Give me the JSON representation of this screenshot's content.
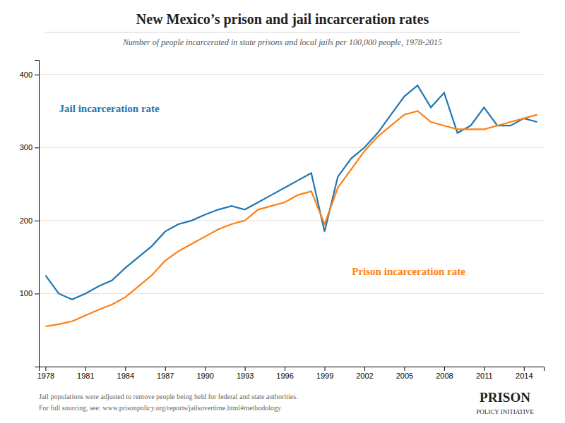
{
  "chart_data": {
    "type": "line",
    "title": "New Mexico’s prison and jail incarceration rates",
    "subtitle": "Number of people incarcerated in state prisons and local jails per 100,000 people, 1978-2015",
    "annotations": [
      "Jail populations were adjusted to remove people being held for federal and state authorities.",
      "For full sourcing, see: www.prisonpolicy.org/reports/jailsovertime.html#methodology",
      "PRISON",
      "POLICY INITIATIVE"
    ],
    "x": [
      1978,
      1979,
      1980,
      1981,
      1982,
      1983,
      1984,
      1985,
      1986,
      1987,
      1988,
      1989,
      1990,
      1991,
      1992,
      1993,
      1994,
      1995,
      1996,
      1997,
      1998,
      1999,
      2000,
      2001,
      2002,
      2003,
      2004,
      2005,
      2006,
      2007,
      2008,
      2009,
      2010,
      2011,
      2012,
      2013,
      2014,
      2015
    ],
    "series": [
      {
        "name": "Jail incarceration rate",
        "values": [
          125,
          100,
          92,
          100,
          110,
          118,
          135,
          150,
          165,
          185,
          195,
          200,
          208,
          215,
          220,
          215,
          225,
          235,
          245,
          255,
          265,
          185,
          260,
          285,
          300,
          320,
          345,
          370,
          385,
          355,
          375,
          320,
          330,
          355,
          330,
          330,
          340,
          335
        ]
      },
      {
        "name": "Prison incarceration rate",
        "values": [
          55,
          58,
          62,
          70,
          78,
          85,
          95,
          110,
          125,
          145,
          158,
          168,
          178,
          188,
          195,
          200,
          215,
          220,
          225,
          235,
          240,
          195,
          245,
          270,
          295,
          315,
          330,
          345,
          350,
          335,
          330,
          325,
          325,
          325,
          330,
          335,
          340,
          345
        ]
      }
    ],
    "xlim": [
      1977.5,
      2015.5
    ],
    "xticks": [
      1978,
      1981,
      1984,
      1987,
      1990,
      1993,
      1996,
      1999,
      2002,
      2005,
      2008,
      2011,
      2014
    ],
    "ylim": [
      0,
      420
    ],
    "yticks": [
      100,
      200,
      300,
      400
    ],
    "grid": true
  }
}
